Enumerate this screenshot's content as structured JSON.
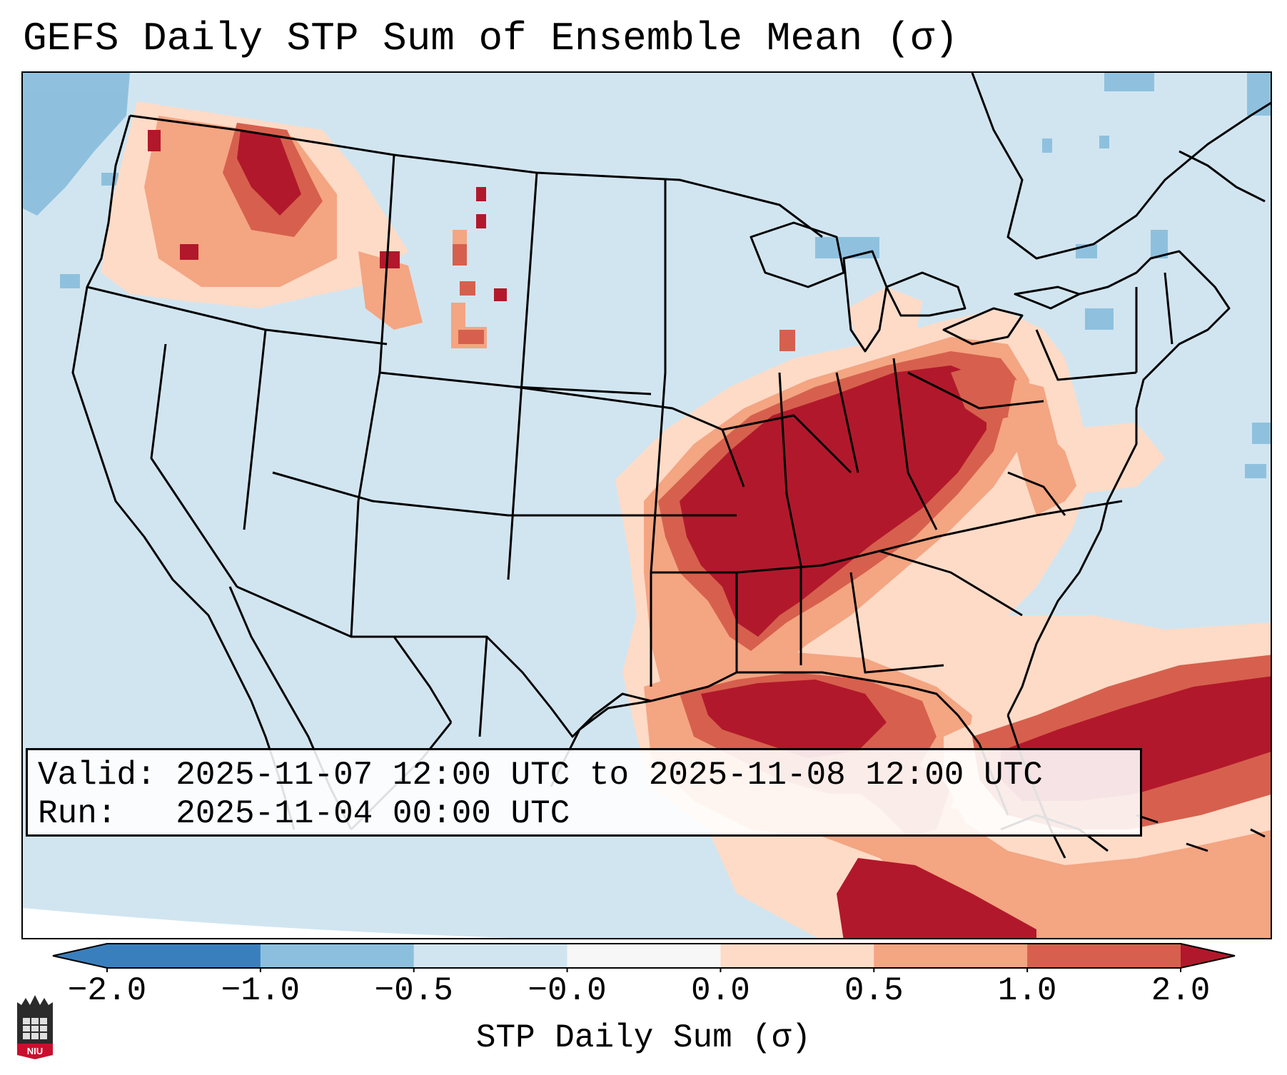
{
  "title": "GEFS Daily STP Sum of Ensemble Mean (σ)",
  "info": {
    "valid_line": "Valid: 2025-11-07 12:00 UTC to 2025-11-08 12:00 UTC",
    "run_line": "Run:   2025-11-04 00:00 UTC"
  },
  "colorbar": {
    "label": "STP Daily Sum (σ)",
    "ticks": [
      "−2.0",
      "−1.0",
      "−0.5",
      "−0.0",
      "0.0",
      "0.5",
      "1.0",
      "2.0"
    ],
    "colors": [
      "#3a7fbd",
      "#8bbfdd",
      "#d1e5f0",
      "#f7f7f7",
      "#fddbc7",
      "#f4a582",
      "#d6604d",
      "#b2182b"
    ]
  },
  "map": {
    "background_color": "#d1e5f0",
    "regions": [
      {
        "name": "pacific-northwest",
        "level": "high"
      },
      {
        "name": "tennessee-ohio-valley",
        "level": "high"
      },
      {
        "name": "gulf-of-mexico",
        "level": "high"
      },
      {
        "name": "western-atlantic",
        "level": "high"
      },
      {
        "name": "pacific-ocean",
        "level": "low"
      }
    ]
  },
  "logo_text": "NIU"
}
